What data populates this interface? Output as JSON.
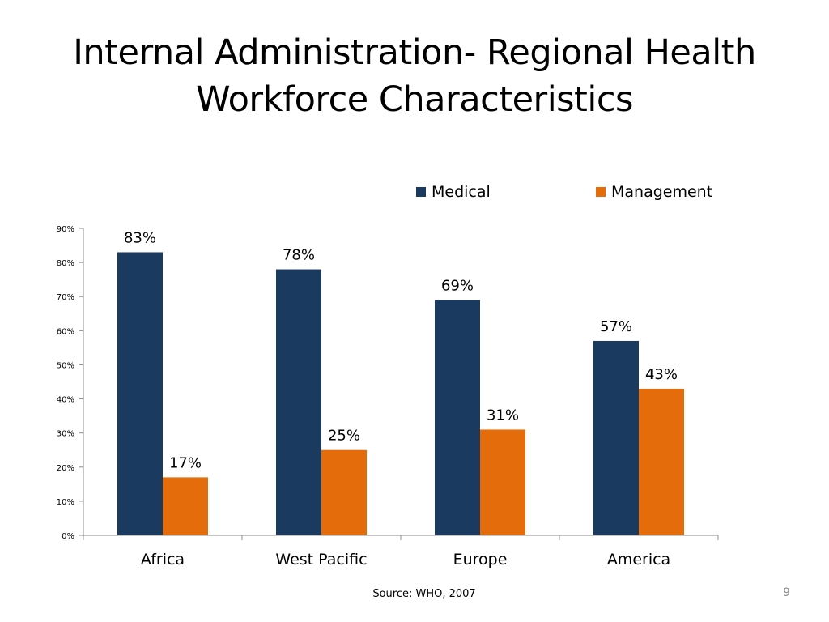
{
  "slide": {
    "title_line1": "Internal Administration- Regional Health",
    "title_line2": "Workforce Characteristics",
    "source": "Source: WHO, 2007",
    "page_number": "9"
  },
  "chart_data": {
    "type": "bar",
    "title": "",
    "xlabel": "",
    "ylabel": "",
    "categories": [
      "Africa",
      "West Pacific",
      "Europe",
      "America"
    ],
    "series": [
      {
        "name": "Medical",
        "color": "#1b3a5f",
        "values": [
          83,
          78,
          69,
          57
        ],
        "labels": [
          "83%",
          "78%",
          "69%",
          "57%"
        ]
      },
      {
        "name": "Management",
        "color": "#e46c0a",
        "values": [
          17,
          25,
          31,
          43
        ],
        "labels": [
          "17%",
          "25%",
          "31%",
          "43%"
        ]
      }
    ],
    "ylim": [
      0,
      90
    ],
    "yticks": [
      "0%",
      "10%",
      "20%",
      "30%",
      "40%",
      "50%",
      "60%",
      "70%",
      "80%",
      "90%"
    ],
    "grid": false,
    "legend_position": "top-right"
  }
}
